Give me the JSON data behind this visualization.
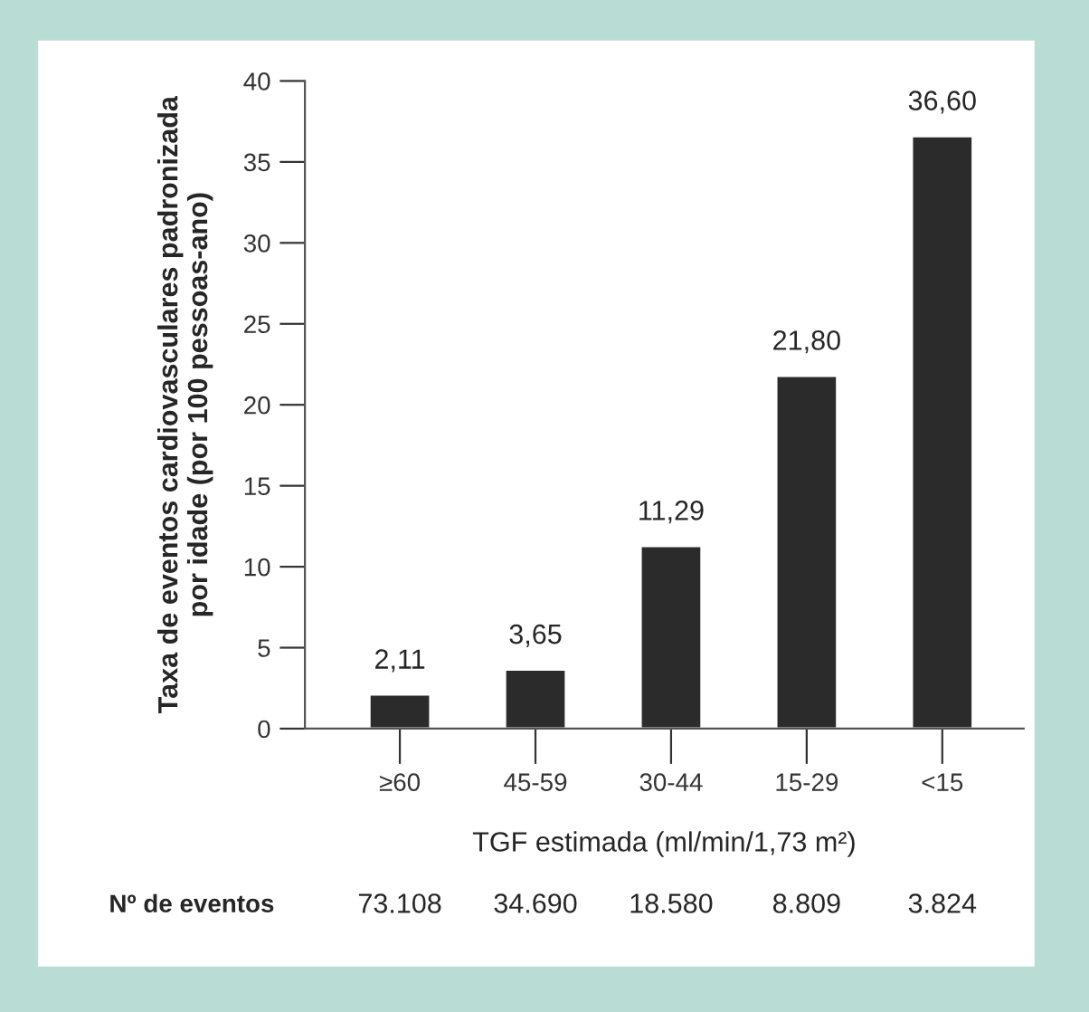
{
  "chart_data": {
    "type": "bar",
    "categories": [
      "≥60",
      "45-59",
      "30-44",
      "15-29",
      "<15"
    ],
    "values": [
      2.11,
      3.65,
      11.29,
      21.8,
      36.6
    ],
    "value_labels": [
      "2,11",
      "3,65",
      "11,29",
      "21,80",
      "36,60"
    ],
    "color": "#2b2b2b",
    "ylim": [
      0,
      40
    ],
    "yticks": [
      0,
      5,
      10,
      15,
      20,
      25,
      30,
      35,
      40
    ],
    "xlabel": "TGF estimada (ml/min/1,73 m²)",
    "ylabel": "Taxa de eventos cardiovasculares padronizada\npor idade (por 100 pessoas-ano)",
    "annotations": [
      "Nº de eventos",
      "73.108",
      "34.690",
      "18.580",
      "8.809",
      "3.824"
    ],
    "grid": false
  }
}
